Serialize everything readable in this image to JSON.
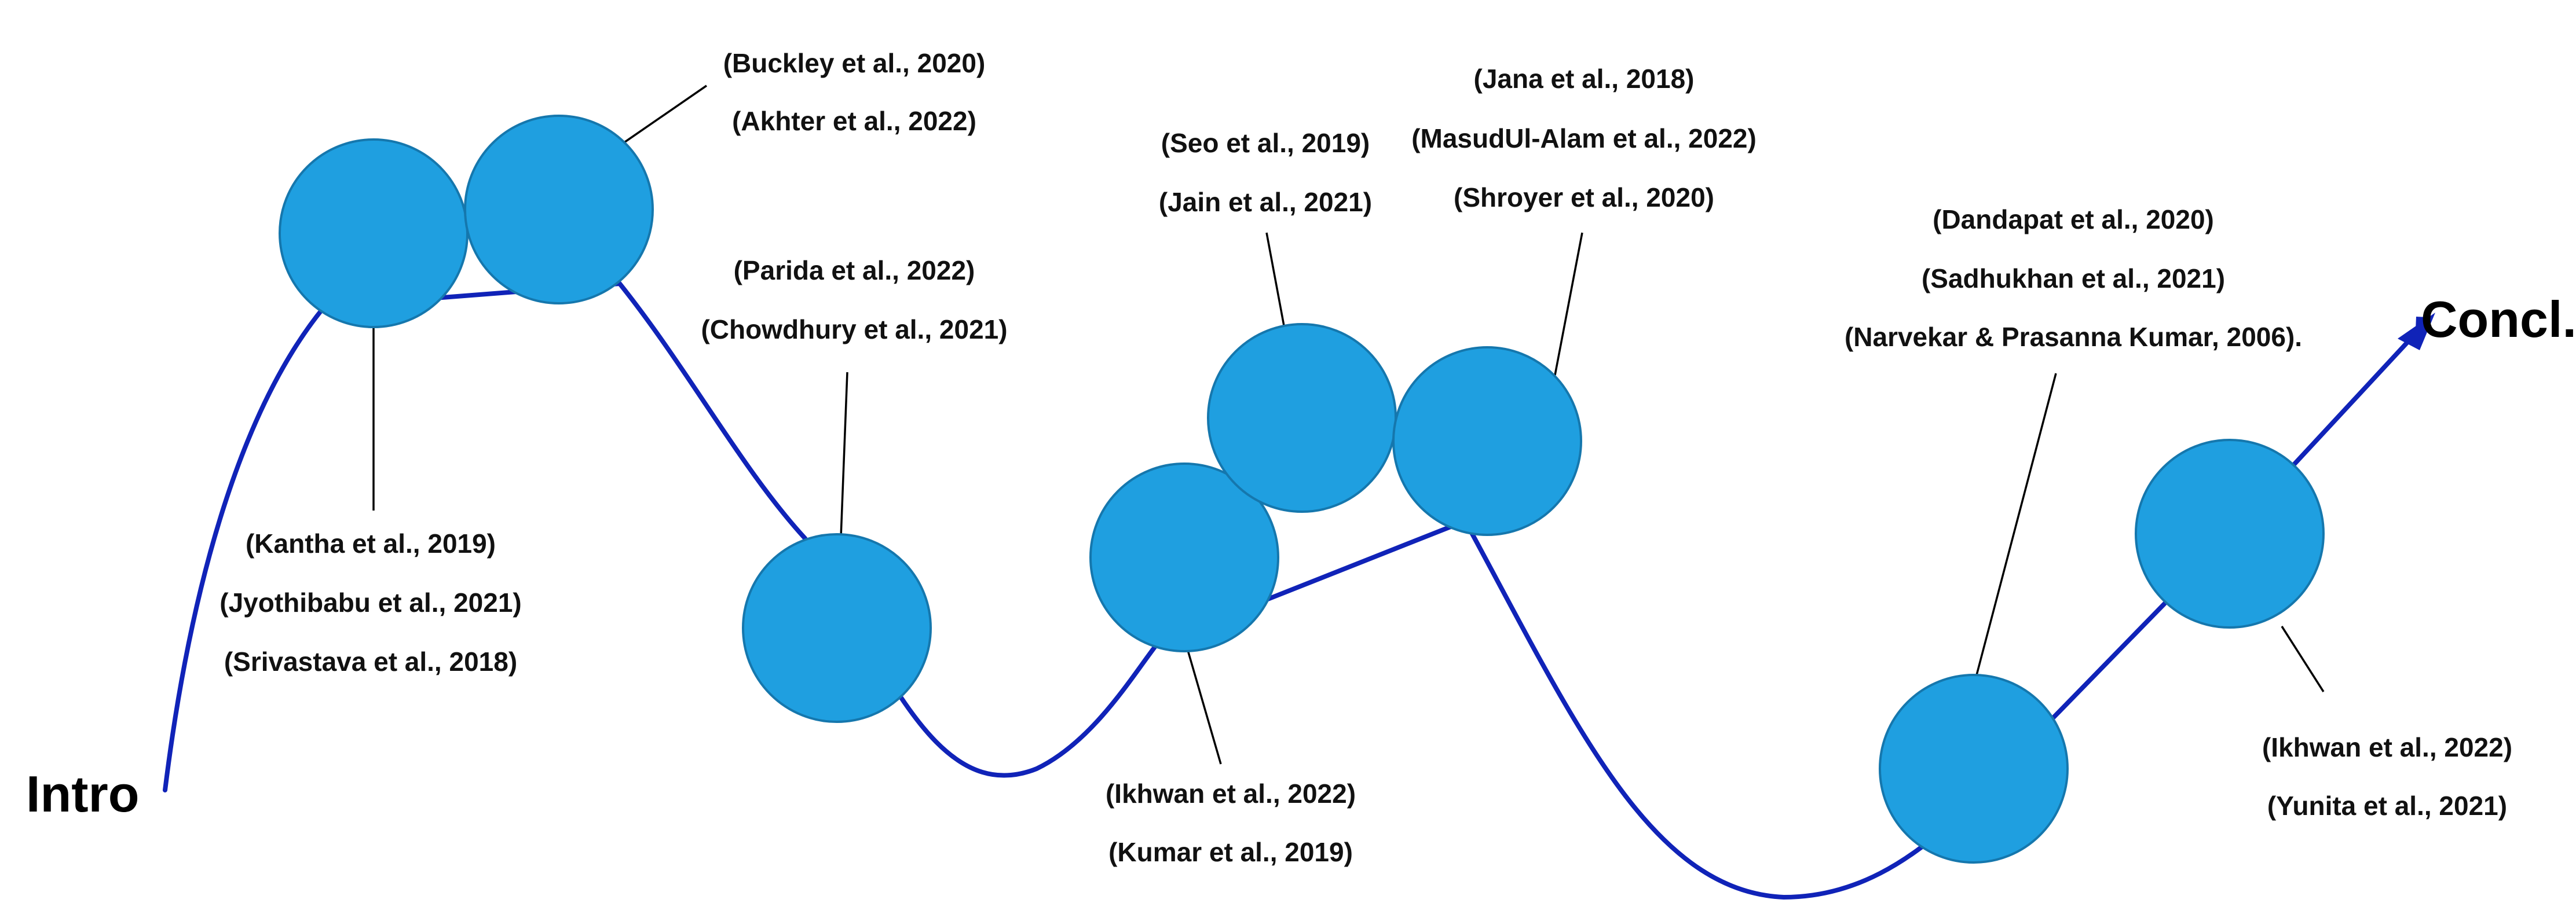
{
  "labels": {
    "start": "Intro",
    "end": "Concl."
  },
  "colors": {
    "node_fill": "#1f9fe0",
    "node_stroke": "#1577ad",
    "path": "#1023b8",
    "leader": "#000000",
    "text": "#111111"
  },
  "citation_groups": [
    {
      "id": "g1",
      "citations": [
        "(Kantha et al., 2019)",
        "(Jyothibabu et al., 2021)",
        "(Srivastava et al., 2018)"
      ]
    },
    {
      "id": "g2",
      "citations": [
        "(Buckley et al., 2020)",
        "(Akhter et al., 2022)"
      ]
    },
    {
      "id": "g3",
      "citations": [
        "(Parida et al., 2022)",
        "(Chowdhury et al., 2021)"
      ]
    },
    {
      "id": "g4",
      "citations": [
        "(Ikhwan et al., 2022)",
        "(Kumar et al., 2019)"
      ]
    },
    {
      "id": "g5",
      "citations": [
        "(Seo et al., 2019)",
        "(Jain et al., 2021)"
      ]
    },
    {
      "id": "g6",
      "citations": [
        "(Jana et al., 2018)",
        "(MasudUl-Alam et al., 2022)",
        "(Shroyer et al., 2020)"
      ]
    },
    {
      "id": "g7",
      "citations": [
        "(Dandapat et al., 2020)",
        "(Sadhukhan et al., 2021)",
        "(Narvekar & Prasanna Kumar, 2006)."
      ]
    },
    {
      "id": "g8",
      "citations": [
        "(Ikhwan et al., 2022)",
        "(Yunita et al., 2021)"
      ]
    }
  ]
}
